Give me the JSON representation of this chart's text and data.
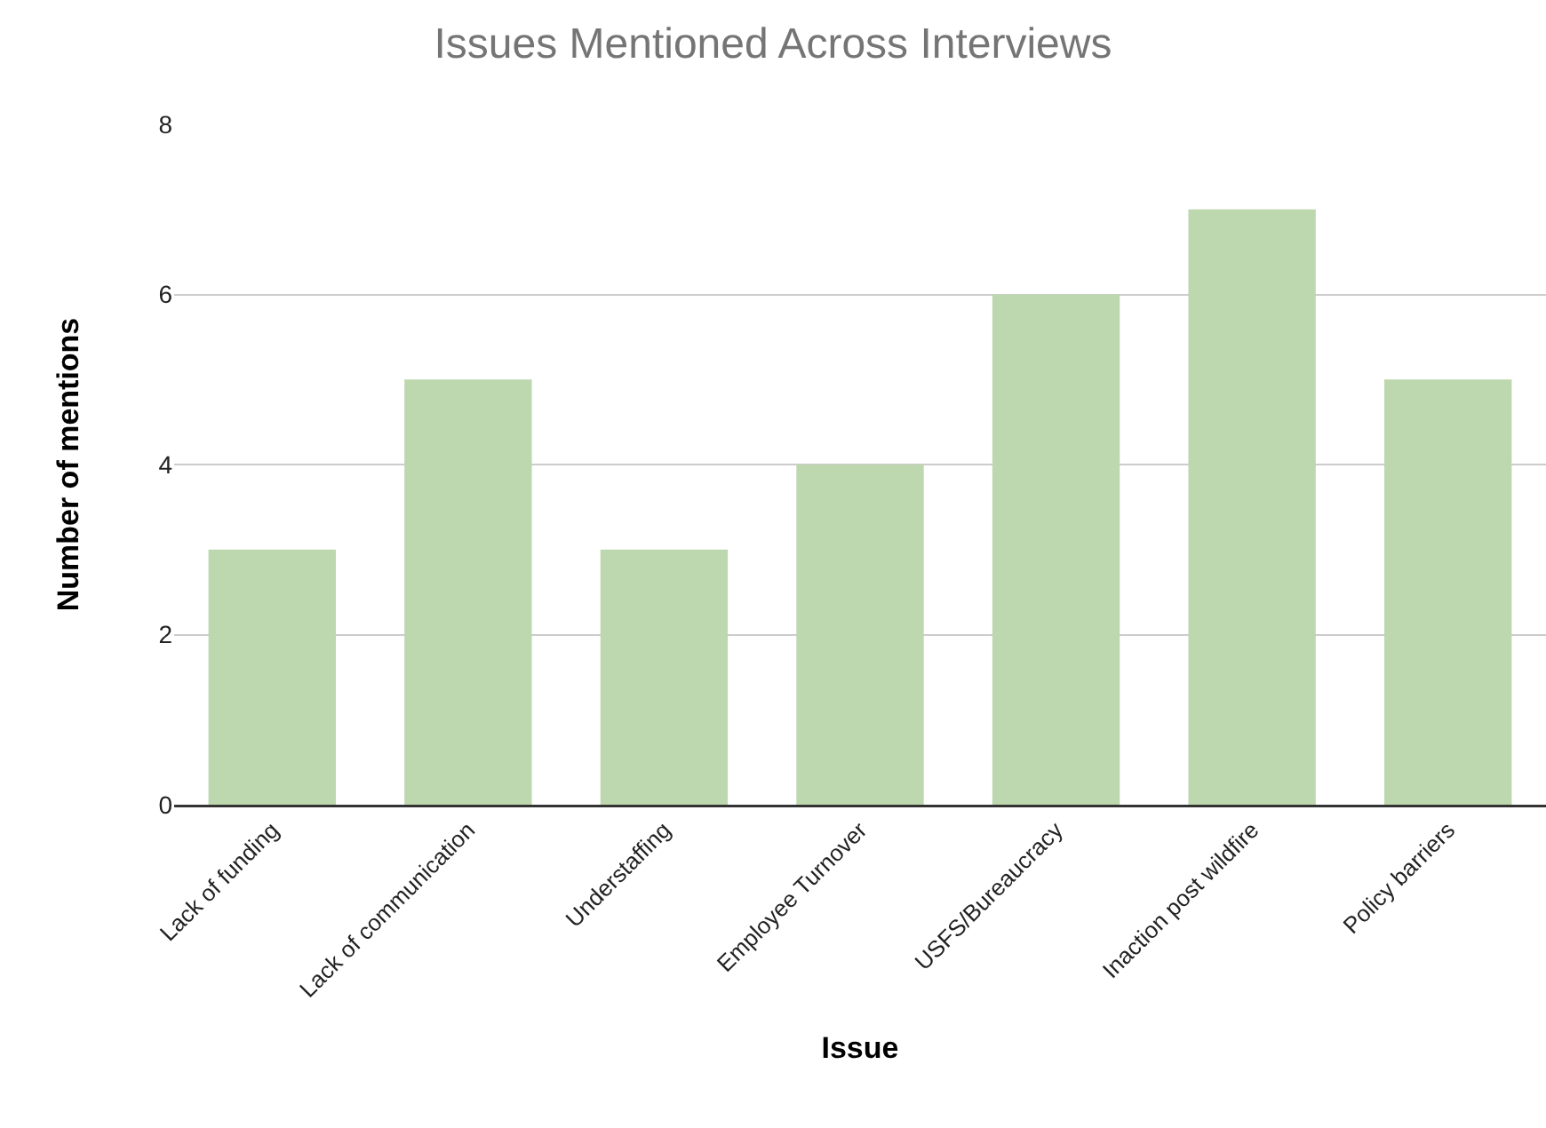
{
  "chart_data": {
    "type": "bar",
    "title": "Issues Mentioned Across Interviews",
    "xlabel": "Issue",
    "ylabel": "Number of mentions",
    "categories": [
      "Lack of funding",
      "Lack of communication",
      "Understaffing",
      "Employee Turnover",
      "USFS/Bureaucracy",
      "Inaction post wildfire",
      "Policy barriers"
    ],
    "values": [
      3,
      5,
      3,
      4,
      6,
      7,
      5
    ],
    "color": "#bdd7ae",
    "ylim": [
      0,
      8
    ],
    "yticks": [
      0,
      2,
      4,
      6,
      8
    ],
    "grid": "y",
    "legend": false
  }
}
